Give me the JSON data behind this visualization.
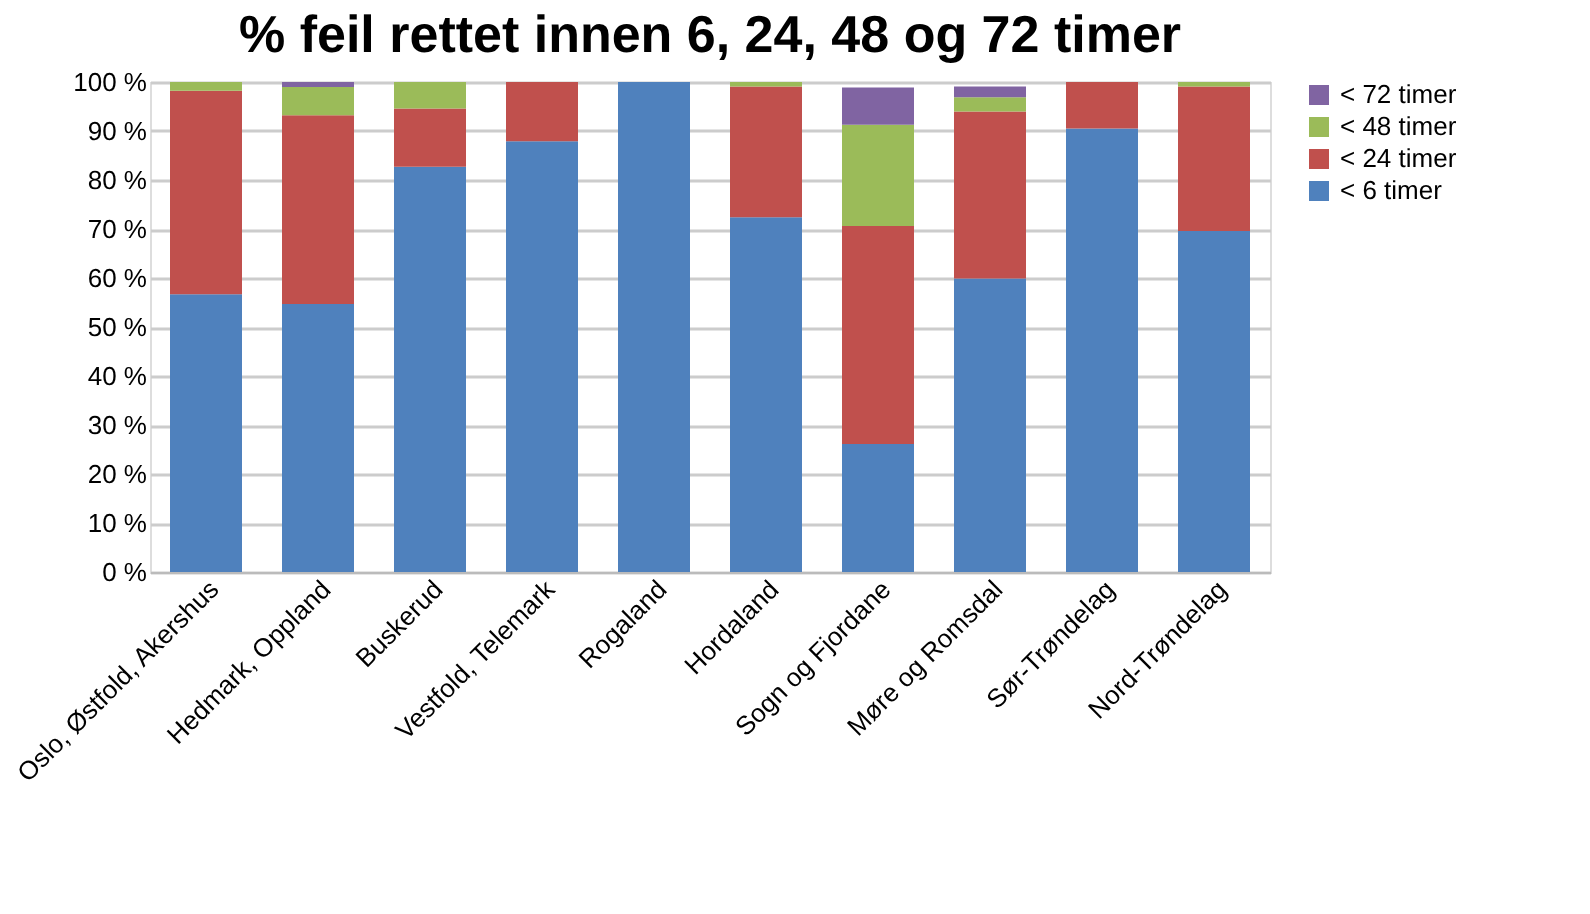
{
  "chart_data": {
    "type": "bar",
    "title": "% feil rettet innen 6, 24, 48 og 72 timer",
    "stacked": true,
    "categories": [
      "Oslo, Østfold, Akershus",
      "Hedmark, Oppland",
      "Buskerud",
      "Vestfold, Telemark",
      "Rogaland",
      "Hordaland",
      "Sogn og Fjordane",
      "Møre og Romsdal",
      "Sør-Trøndelag",
      "Nord-Trøndelag"
    ],
    "series": [
      {
        "name": "< 6 timer",
        "color": "#4f81bd",
        "values": [
          56.7,
          54.7,
          82.7,
          87.9,
          100,
          72.4,
          26.1,
          59.9,
          90.5,
          69.6
        ]
      },
      {
        "name": "< 24 timer",
        "color": "#c0504d",
        "values": [
          41.5,
          38.5,
          11.9,
          12.1,
          0,
          26.7,
          44.5,
          34.1,
          9.5,
          29.5
        ]
      },
      {
        "name": "< 48 timer",
        "color": "#9bbb59",
        "values": [
          1.8,
          5.8,
          5.4,
          0,
          0,
          0.9,
          20.7,
          2.9,
          0,
          0.9
        ]
      },
      {
        "name": "< 72 timer",
        "color": "#8064a2",
        "values": [
          0,
          1,
          0,
          0,
          0,
          0,
          7.6,
          2.2,
          0,
          0
        ]
      }
    ],
    "ylim": [
      0,
      100
    ],
    "yticks": [
      {
        "value": 0,
        "label": "0 %"
      },
      {
        "value": 10,
        "label": "10 %"
      },
      {
        "value": 20,
        "label": "20 %"
      },
      {
        "value": 30,
        "label": "30 %"
      },
      {
        "value": 40,
        "label": "40 %"
      },
      {
        "value": 50,
        "label": "50 %"
      },
      {
        "value": 60,
        "label": "60 %"
      },
      {
        "value": 70,
        "label": "70 %"
      },
      {
        "value": 80,
        "label": "80 %"
      },
      {
        "value": 90,
        "label": "90 %"
      },
      {
        "value": 100,
        "label": "100 %"
      }
    ],
    "grid": "y",
    "legend": "right"
  }
}
